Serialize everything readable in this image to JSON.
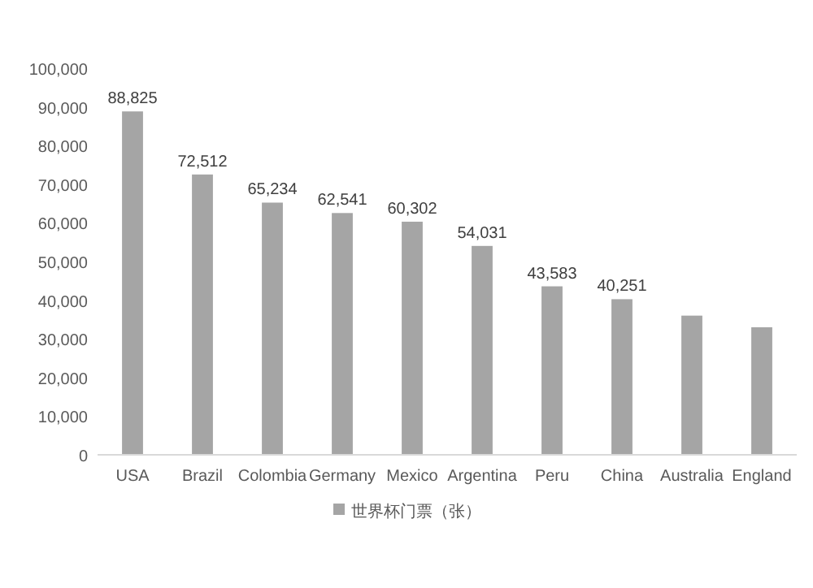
{
  "chart_data": {
    "type": "bar",
    "categories": [
      "USA",
      "Brazil",
      "Colombia",
      "Germany",
      "Mexico",
      "Argentina",
      "Peru",
      "China",
      "Australia",
      "England"
    ],
    "series": [
      {
        "name": "世界杯门票（张）",
        "color": "#a5a5a5",
        "values": [
          88825,
          72512,
          65234,
          62541,
          60302,
          54031,
          43583,
          40251,
          36000,
          33000
        ],
        "value_labels": [
          "88,825",
          "72,512",
          "65,234",
          "62,541",
          "60,302",
          "54,031",
          "43,583",
          "40,251",
          null,
          null
        ]
      }
    ],
    "ylim": [
      0,
      100000
    ],
    "yticks": [
      {
        "value": 0,
        "label": "0"
      },
      {
        "value": 10000,
        "label": "10,000"
      },
      {
        "value": 20000,
        "label": "20,000"
      },
      {
        "value": 30000,
        "label": "30,000"
      },
      {
        "value": 40000,
        "label": "40,000"
      },
      {
        "value": 50000,
        "label": "50,000"
      },
      {
        "value": 60000,
        "label": "60,000"
      },
      {
        "value": 70000,
        "label": "70,000"
      },
      {
        "value": 80000,
        "label": "80,000"
      },
      {
        "value": 90000,
        "label": "90,000"
      },
      {
        "value": 100000,
        "label": "100,000"
      }
    ],
    "grid": false,
    "legend": "bottom"
  }
}
